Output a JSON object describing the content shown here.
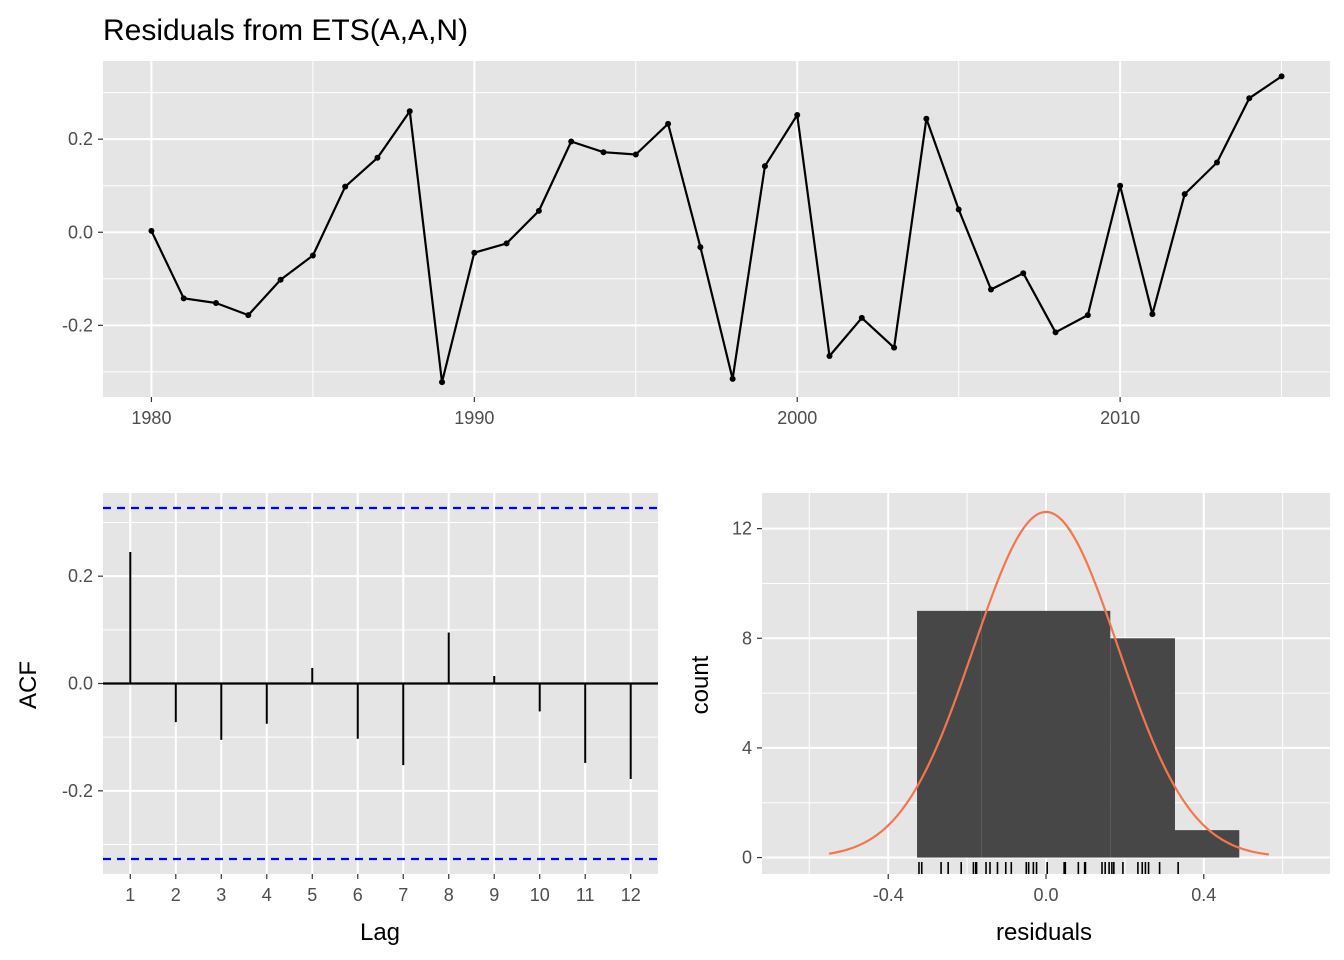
{
  "title": "Residuals from ETS(A,A,N)",
  "colors": {
    "panel": "#e5e5e5",
    "grid": "#ffffff",
    "line": "#000000",
    "ci": "#0000ff",
    "hist": "#474747",
    "density": "#f4754f"
  },
  "chart_data": [
    {
      "type": "line",
      "name": "residuals-time-series",
      "x": [
        1980,
        1981,
        1982,
        1983,
        1984,
        1985,
        1986,
        1987,
        1988,
        1989,
        1990,
        1991,
        1992,
        1993,
        1994,
        1995,
        1996,
        1997,
        1998,
        1999,
        2000,
        2001,
        2002,
        2003,
        2004,
        2005,
        2006,
        2007,
        2008,
        2009,
        2010,
        2011,
        2012,
        2013,
        2014,
        2015
      ],
      "y": [
        0.003,
        -0.142,
        -0.152,
        -0.178,
        -0.102,
        -0.05,
        0.098,
        0.16,
        0.26,
        -0.322,
        -0.044,
        -0.024,
        0.046,
        0.195,
        0.172,
        0.167,
        0.233,
        -0.032,
        -0.315,
        0.142,
        0.252,
        -0.266,
        -0.184,
        -0.248,
        0.244,
        0.049,
        -0.123,
        -0.088,
        -0.215,
        -0.178,
        0.1,
        -0.176,
        0.082,
        0.15,
        0.288,
        0.335
      ],
      "xlim": [
        1978.5,
        2016.5
      ],
      "ylim": [
        -0.354,
        0.368
      ],
      "x_ticks": [
        {
          "value": 1980,
          "label": "1980"
        },
        {
          "value": 1990,
          "label": "1990"
        },
        {
          "value": 2000,
          "label": "2000"
        },
        {
          "value": 2010,
          "label": "2010"
        }
      ],
      "y_ticks": [
        {
          "value": -0.2,
          "label": "-0.2"
        },
        {
          "value": 0.0,
          "label": "0.0"
        },
        {
          "value": 0.2,
          "label": "0.2"
        }
      ]
    },
    {
      "type": "bar",
      "name": "acf",
      "xlabel": "Lag",
      "ylabel": "ACF",
      "lags": [
        1,
        2,
        3,
        4,
        5,
        6,
        7,
        8,
        9,
        10,
        11,
        12
      ],
      "values": [
        0.245,
        -0.072,
        -0.105,
        -0.075,
        0.029,
        -0.103,
        -0.152,
        0.095,
        0.014,
        -0.052,
        -0.148,
        -0.178
      ],
      "ci": 0.327,
      "xlim": [
        0.4,
        12.6
      ],
      "ylim": [
        -0.355,
        0.355
      ],
      "x_ticks": [
        {
          "value": 1,
          "label": "1"
        },
        {
          "value": 2,
          "label": "2"
        },
        {
          "value": 3,
          "label": "3"
        },
        {
          "value": 4,
          "label": "4"
        },
        {
          "value": 5,
          "label": "5"
        },
        {
          "value": 6,
          "label": "6"
        },
        {
          "value": 7,
          "label": "7"
        },
        {
          "value": 8,
          "label": "8"
        },
        {
          "value": 9,
          "label": "9"
        },
        {
          "value": 10,
          "label": "10"
        },
        {
          "value": 11,
          "label": "11"
        },
        {
          "value": 12,
          "label": "12"
        }
      ],
      "y_ticks": [
        {
          "value": -0.2,
          "label": "-0.2"
        },
        {
          "value": 0.0,
          "label": "0.0"
        },
        {
          "value": 0.2,
          "label": "0.2"
        }
      ]
    },
    {
      "type": "bar",
      "name": "residuals-histogram",
      "xlabel": "residuals",
      "ylabel": "count",
      "bins": [
        {
          "x0": -0.327,
          "x1": -0.163,
          "count": 9
        },
        {
          "x0": -0.163,
          "x1": 0.0,
          "count": 9
        },
        {
          "x0": 0.0,
          "x1": 0.163,
          "count": 9
        },
        {
          "x0": 0.163,
          "x1": 0.327,
          "count": 8
        },
        {
          "x0": 0.327,
          "x1": 0.49,
          "count": 1
        }
      ],
      "density": {
        "mean": 0.0,
        "sd": 0.1835,
        "scale": 5.8,
        "from": -0.55,
        "to": 0.565
      },
      "rug": [
        -0.322,
        -0.315,
        -0.266,
        -0.248,
        -0.215,
        -0.184,
        -0.178,
        -0.178,
        -0.176,
        -0.152,
        -0.142,
        -0.123,
        -0.102,
        -0.088,
        -0.05,
        -0.044,
        -0.032,
        -0.024,
        0.003,
        0.046,
        0.049,
        0.082,
        0.098,
        0.1,
        0.142,
        0.15,
        0.16,
        0.167,
        0.172,
        0.195,
        0.233,
        0.244,
        0.252,
        0.26,
        0.288,
        0.335
      ],
      "xlim": [
        -0.72,
        0.72
      ],
      "ylim": [
        -0.6,
        13.3
      ],
      "x_ticks": [
        {
          "value": -0.4,
          "label": "-0.4"
        },
        {
          "value": 0.0,
          "label": "0.0"
        },
        {
          "value": 0.4,
          "label": "0.4"
        }
      ],
      "x_minor": [
        -0.6,
        -0.2,
        0.2,
        0.6
      ],
      "y_ticks": [
        {
          "value": 0,
          "label": "0"
        },
        {
          "value": 4,
          "label": "4"
        },
        {
          "value": 8,
          "label": "8"
        },
        {
          "value": 12,
          "label": "12"
        }
      ]
    }
  ]
}
